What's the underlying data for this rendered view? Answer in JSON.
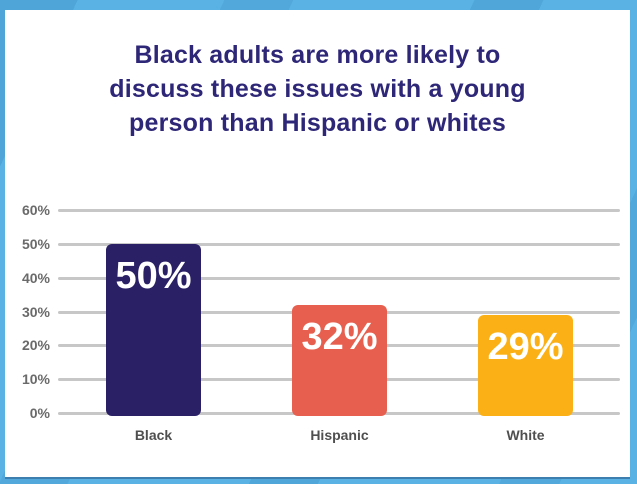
{
  "frame": {
    "border_color": "#59b2e3",
    "panel_background": "#ffffff"
  },
  "title": {
    "text": "Black adults are more likely to discuss these issues with a young person than Hispanic or whites",
    "lines": [
      "Black adults are more likely to",
      "discuss these issues with a young",
      "person than Hispanic or whites"
    ],
    "color": "#2e2777"
  },
  "chart_data": {
    "type": "bar",
    "title": "Black adults are more likely to discuss these issues with a young person than Hispanic or whites",
    "categories": [
      "Black",
      "Hispanic",
      "White"
    ],
    "values": [
      50,
      32,
      29
    ],
    "value_labels": [
      "50%",
      "32%",
      "29%"
    ],
    "bar_colors": [
      "#2a2066",
      "#e7604f",
      "#fbb116"
    ],
    "yticks": [
      "60%",
      "50%",
      "40%",
      "30%",
      "20%",
      "10%",
      "0%"
    ],
    "ylim": [
      0,
      60
    ],
    "grid": true,
    "legend_position": "none",
    "xlabel": "",
    "ylabel": "",
    "value_label_color": "#ffffff",
    "tick_color": "#6a6a6a",
    "gridline_color": "#c7c7c7",
    "category_label_color": "#4f4f4f"
  }
}
